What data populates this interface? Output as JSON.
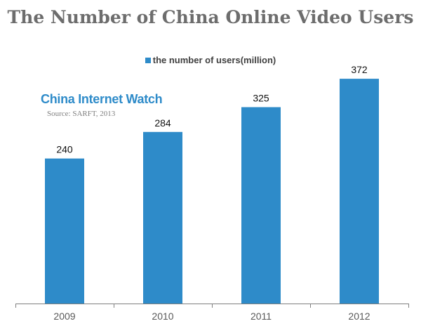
{
  "title": "The Number of China Online Video Users",
  "watermark": "China Internet Watch",
  "source": "Source: SARFT, 2013",
  "colors": {
    "bar": "#2e8bc9",
    "watermark": "#2e8bc9",
    "title": "#6d6d6d",
    "axis": "#808080"
  },
  "chart_data": {
    "type": "bar",
    "title": "The Number of China Online Video Users",
    "categories": [
      "2009",
      "2010",
      "2011",
      "2012"
    ],
    "series": [
      {
        "name": "the number of users(million)",
        "values": [
          240,
          284,
          325,
          372
        ]
      }
    ],
    "xlabel": "",
    "ylabel": "",
    "ylim": [
      0,
      400
    ],
    "grid": false,
    "legend": "top-center",
    "data_labels": true
  }
}
